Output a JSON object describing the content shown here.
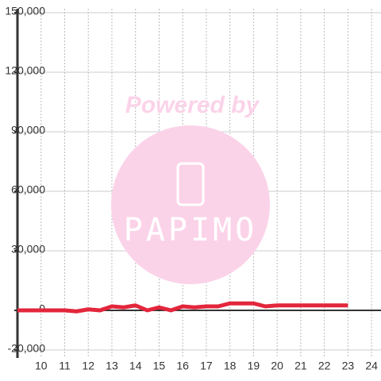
{
  "chart_data": {
    "type": "line",
    "watermark": {
      "line1": "Powered by",
      "line2": "PAPIMO"
    },
    "x": [
      9,
      11,
      11.5,
      12,
      12.5,
      13,
      13.5,
      14,
      14.5,
      15,
      15.5,
      16,
      16.5,
      17,
      17.5,
      18,
      18.5,
      19,
      19.5,
      20,
      21,
      22,
      23
    ],
    "series": [
      {
        "color": "#e3263c",
        "values": [
          0,
          0,
          -500,
          500,
          0,
          2000,
          1500,
          2500,
          0,
          1500,
          0,
          2000,
          1500,
          2000,
          2000,
          3500,
          3500,
          3500,
          2000,
          2500,
          2500,
          2500,
          2500
        ]
      }
    ],
    "xlim": [
      9,
      24.4
    ],
    "xticks": [
      10,
      11,
      12,
      13,
      14,
      15,
      16,
      17,
      18,
      19,
      20,
      21,
      22,
      23,
      24
    ],
    "ylim": [
      -24000,
      152000
    ],
    "yticks": [
      {
        "value": -20000,
        "label": "-20,000"
      },
      0,
      {
        "value": 30000,
        "label": "30,000"
      },
      {
        "value": 60000,
        "label": "60,000"
      },
      {
        "value": 90000,
        "label": "90,000"
      },
      {
        "value": 120000,
        "label": "120,000"
      },
      {
        "value": 150000,
        "label": "150,000"
      }
    ],
    "grid": true
  }
}
